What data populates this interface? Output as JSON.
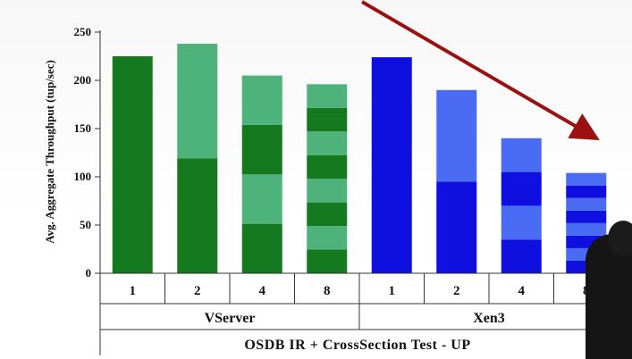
{
  "chart_data": {
    "type": "bar",
    "title": "OSDB IR + CrossSection Test - UP",
    "ylabel": "Avg. Aggregate Throughput (tup/sec)",
    "ylim": [
      0,
      250
    ],
    "yticks": [
      0,
      50,
      100,
      150,
      200,
      250
    ],
    "groups": [
      {
        "name": "VServer",
        "categories": [
          "1",
          "2",
          "4",
          "8"
        ],
        "values": [
          225,
          238,
          205,
          196
        ],
        "segment_count": [
          1,
          2,
          4,
          8
        ],
        "colors": [
          "#157a1f",
          "#4db37a"
        ]
      },
      {
        "name": "Xen3",
        "categories": [
          "1",
          "2",
          "4",
          "8"
        ],
        "values": [
          224,
          190,
          140,
          104
        ],
        "segment_count": [
          1,
          2,
          4,
          8
        ],
        "colors": [
          "#0f0fe0",
          "#4a6cf5"
        ]
      }
    ],
    "annotation": {
      "type": "arrow",
      "color": "#9b1111"
    }
  }
}
